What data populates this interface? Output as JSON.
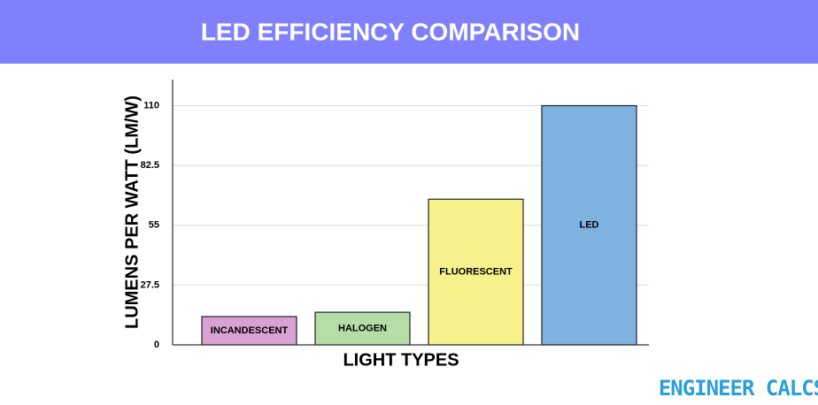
{
  "chart_data": {
    "type": "bar",
    "title": "LED EFFICIENCY COMPARISON",
    "x_label": "LIGHT TYPES",
    "y_label": "LUMENS PER WATT (LM/W)",
    "categories": [
      "INCANDESCENT",
      "HALOGEN",
      "FLUORESCENT",
      "LED"
    ],
    "values": [
      13,
      15,
      67,
      110
    ],
    "colors": [
      "#d9a2d4",
      "#b4dea6",
      "#f6f18b",
      "#7fb1e1"
    ],
    "ylim": [
      0,
      122
    ],
    "yticks": [
      0,
      27.5,
      55,
      82.5,
      110
    ],
    "grid": true
  },
  "watermark": "ENGINEER CALCS"
}
